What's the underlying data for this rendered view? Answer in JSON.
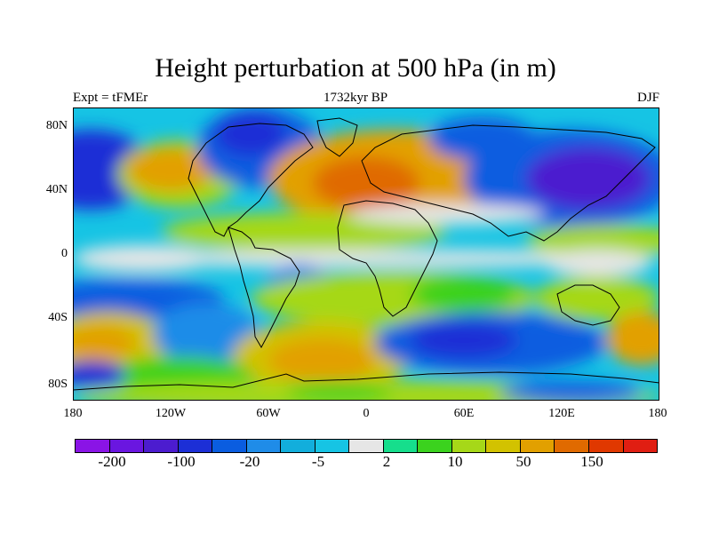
{
  "title": "Height perturbation at 500 hPa (in m)",
  "left_subtitle": "Expt = tFMEr",
  "center_subtitle": "1732kyr BP",
  "right_subtitle": "DJF",
  "lat_ticks": [
    "80N",
    "40N",
    "0",
    "40S",
    "80S"
  ],
  "lon_ticks": [
    "180",
    "120W",
    "60W",
    "0",
    "60E",
    "120E",
    "180"
  ],
  "colorbar": {
    "colors": [
      "#8a14e6",
      "#6a16e0",
      "#4c1ccf",
      "#1c2fd6",
      "#0a5de0",
      "#1f8ce8",
      "#12aedc",
      "#16c4e4",
      "#e6e6e6",
      "#16de8c",
      "#3bd21e",
      "#a6d818",
      "#d2c200",
      "#e2a000",
      "#e06a00",
      "#e03800",
      "#e01e12"
    ],
    "labels": [
      "-200",
      "-100",
      "-20",
      "-5",
      "2",
      "10",
      "50",
      "150"
    ]
  }
}
